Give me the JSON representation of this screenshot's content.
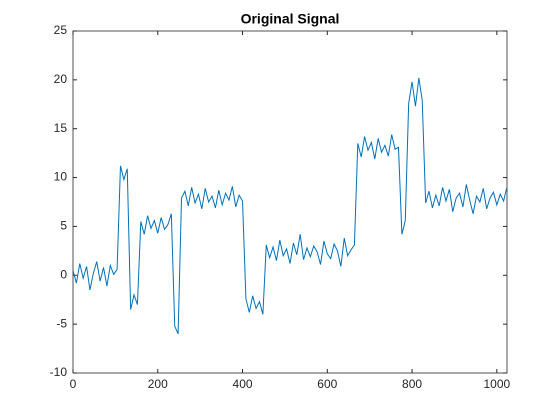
{
  "chart_data": {
    "type": "line",
    "title": "Original Signal",
    "color": "#0072bd",
    "x": [
      0,
      8,
      16,
      24,
      32,
      40,
      48,
      56,
      64,
      72,
      80,
      88,
      96,
      104,
      112,
      120,
      128,
      136,
      144,
      152,
      160,
      168,
      176,
      184,
      192,
      200,
      208,
      216,
      224,
      232,
      240,
      248,
      256,
      264,
      272,
      280,
      288,
      296,
      304,
      312,
      320,
      328,
      336,
      344,
      352,
      360,
      368,
      376,
      384,
      392,
      400,
      408,
      416,
      424,
      432,
      440,
      448,
      456,
      464,
      472,
      480,
      488,
      496,
      504,
      512,
      520,
      528,
      536,
      544,
      552,
      560,
      568,
      576,
      584,
      592,
      600,
      608,
      616,
      624,
      632,
      640,
      648,
      656,
      664,
      672,
      680,
      688,
      696,
      704,
      712,
      720,
      728,
      736,
      744,
      752,
      760,
      768,
      776,
      784,
      792,
      800,
      808,
      816,
      824,
      832,
      840,
      848,
      856,
      864,
      872,
      880,
      888,
      896,
      904,
      912,
      920,
      928,
      936,
      944,
      952,
      960,
      968,
      976,
      984,
      992,
      1000,
      1008,
      1016,
      1023
    ],
    "values": [
      0.5,
      -0.8,
      1.2,
      -0.3,
      0.9,
      -1.5,
      0.2,
      1.4,
      -0.6,
      0.8,
      -1.1,
      1.0,
      0.1,
      0.6,
      11.2,
      9.8,
      10.9,
      -3.5,
      -2.0,
      -3.0,
      5.5,
      4.2,
      6.1,
      4.8,
      5.6,
      4.3,
      5.9,
      4.7,
      5.2,
      6.3,
      -5.2,
      -6.0,
      7.9,
      8.6,
      7.1,
      9.0,
      7.4,
      8.3,
      6.8,
      8.9,
      7.5,
      8.1,
      6.9,
      8.7,
      7.2,
      8.4,
      7.7,
      9.1,
      7.0,
      8.2,
      7.6,
      -2.4,
      -3.8,
      -2.1,
      -3.4,
      -2.7,
      -4.0,
      3.1,
      1.8,
      2.9,
      1.5,
      3.6,
      2.0,
      2.7,
      1.2,
      3.3,
      2.1,
      4.2,
      1.6,
      2.8,
      1.9,
      3.0,
      2.4,
      1.1,
      3.5,
      2.2,
      1.7,
      3.2,
      2.5,
      0.9,
      3.8,
      2.0,
      2.6,
      3.1,
      13.5,
      12.1,
      14.2,
      12.8,
      13.6,
      11.9,
      14.0,
      12.6,
      13.3,
      12.2,
      14.4,
      12.9,
      13.1,
      4.2,
      5.6,
      17.6,
      19.8,
      17.3,
      20.2,
      17.9,
      7.4,
      8.6,
      6.9,
      8.2,
      7.1,
      9.0,
      7.6,
      8.8,
      6.5,
      7.9,
      8.4,
      7.0,
      9.3,
      7.7,
      6.3,
      8.1,
      7.5,
      8.9,
      6.8,
      7.9,
      8.5,
      7.2,
      8.3,
      7.6,
      8.9
    ],
    "xlim": [
      0,
      1024
    ],
    "xticks": [
      0,
      200,
      400,
      600,
      800,
      1000
    ],
    "ylim": [
      -10,
      25
    ],
    "yticks": [
      -10,
      -5,
      0,
      5,
      10,
      15,
      20,
      25
    ]
  }
}
